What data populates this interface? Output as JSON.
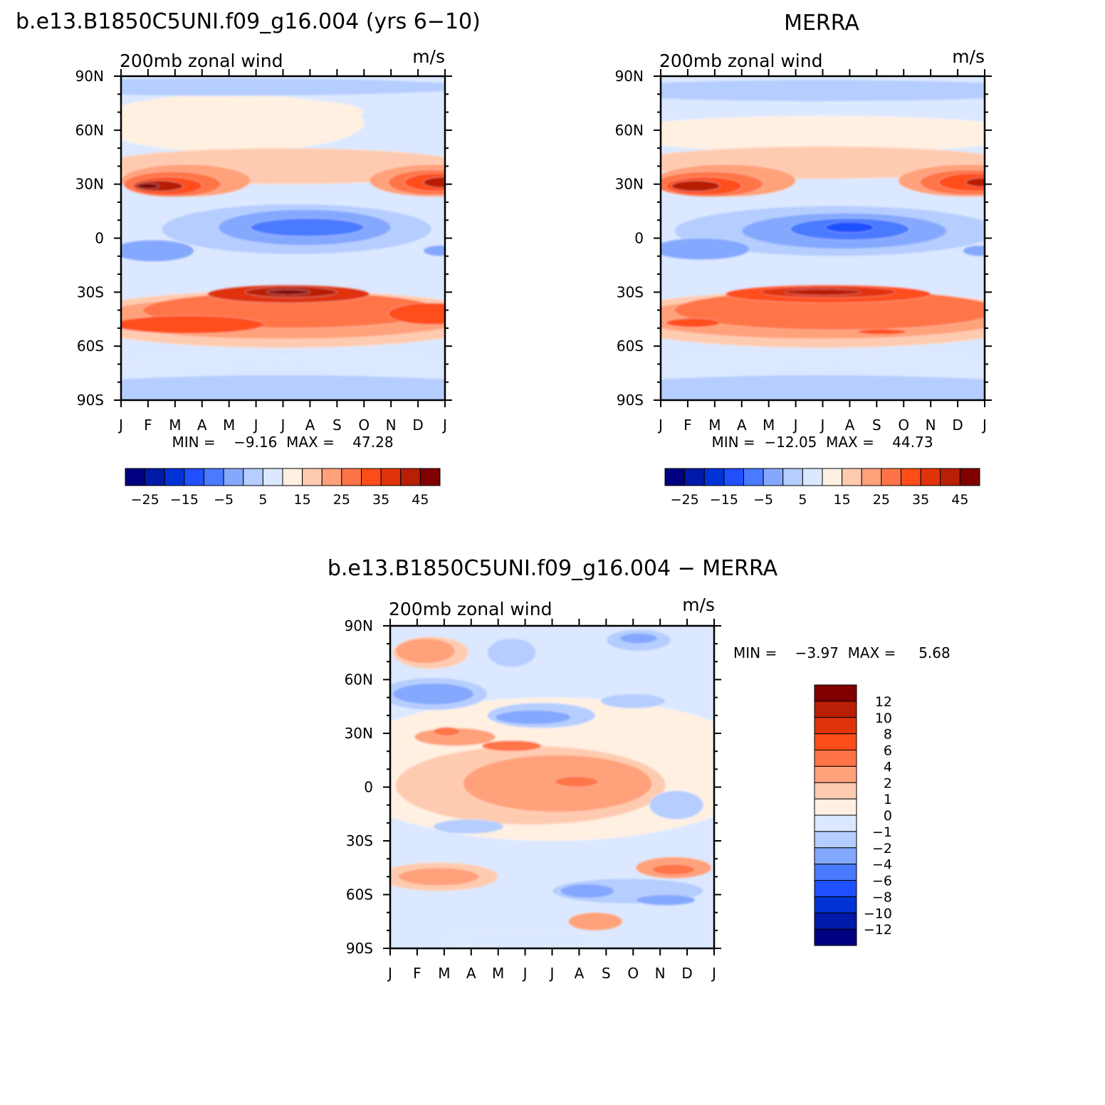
{
  "chart_data": [
    {
      "type": "heatmap",
      "id": "model",
      "title": "b.e13.B1850C5UNI.f09_g16.004 (yrs 6−10)",
      "left_label": "200mb  zonal  wind",
      "right_label": "m/s",
      "y_ticks": [
        "90N",
        "60N",
        "30N",
        "0",
        "30S",
        "60S",
        "90S"
      ],
      "x_ticks": [
        "J",
        "F",
        "M",
        "A",
        "M",
        "J",
        "J",
        "A",
        "S",
        "O",
        "N",
        "D",
        "J"
      ],
      "ylim": [
        -90,
        90
      ],
      "minmax_text": "MIN =    −9.16  MAX =    47.28",
      "colorbar": {
        "orientation": "horizontal",
        "tick_labels": [
          "−25",
          "−15",
          "−5",
          "5",
          "15",
          "25",
          "35",
          "45"
        ],
        "colors": [
          "#000080",
          "#001aa8",
          "#0033d6",
          "#1f4fff",
          "#4a7aff",
          "#85a8ff",
          "#b5cdff",
          "#dbe8ff",
          "#fff0e2",
          "#ffcbb0",
          "#ffa17a",
          "#ff7447",
          "#ff4d1a",
          "#e0330a",
          "#b81f05",
          "#800000"
        ]
      },
      "contours": [
        {
          "color": "#fff0e2",
          "center": [
            4,
            64
          ],
          "spread": [
            5,
            16
          ]
        },
        {
          "color": "#fff0e2",
          "center": [
            6,
            70
          ],
          "spread": [
            3,
            7
          ]
        },
        {
          "color": "#b5cdff",
          "center": [
            4,
            84
          ],
          "spread": [
            9,
            5
          ]
        },
        {
          "color": "#ffcbb0",
          "center": [
            6,
            40
          ],
          "spread": [
            7,
            10
          ]
        },
        {
          "color": "#ffa17a",
          "center": [
            2.4,
            32
          ],
          "spread": [
            2.4,
            9
          ]
        },
        {
          "color": "#ffa17a",
          "center": [
            11.6,
            32
          ],
          "spread": [
            2.4,
            9
          ]
        },
        {
          "color": "#ff7447",
          "center": [
            1.9,
            30
          ],
          "spread": [
            1.8,
            7
          ]
        },
        {
          "color": "#ff7447",
          "center": [
            11.5,
            31
          ],
          "spread": [
            1.6,
            7
          ]
        },
        {
          "color": "#ff4d1a",
          "center": [
            1.7,
            29
          ],
          "spread": [
            1.3,
            5
          ]
        },
        {
          "color": "#ff4d1a",
          "center": [
            11.7,
            31
          ],
          "spread": [
            1.2,
            5
          ]
        },
        {
          "color": "#b81f05",
          "center": [
            1.4,
            29
          ],
          "spread": [
            0.9,
            3
          ]
        },
        {
          "color": "#b81f05",
          "center": [
            11.9,
            31
          ],
          "spread": [
            0.7,
            3
          ]
        },
        {
          "color": "#800000",
          "center": [
            1,
            29
          ],
          "spread": [
            0.4,
            1.5
          ]
        },
        {
          "color": "#b5cdff",
          "center": [
            6.5,
            5
          ],
          "spread": [
            5,
            14
          ]
        },
        {
          "color": "#85a8ff",
          "center": [
            6.8,
            6
          ],
          "spread": [
            3.2,
            10
          ]
        },
        {
          "color": "#4a7aff",
          "center": [
            6.9,
            6
          ],
          "spread": [
            2.1,
            5
          ]
        },
        {
          "color": "#85a8ff",
          "center": [
            1.2,
            -7
          ],
          "spread": [
            1.5,
            6
          ]
        },
        {
          "color": "#85a8ff",
          "center": [
            11.8,
            -7
          ],
          "spread": [
            0.6,
            3
          ]
        },
        {
          "color": "#ffcbb0",
          "center": [
            6,
            -45
          ],
          "spread": [
            8,
            16
          ]
        },
        {
          "color": "#ffa17a",
          "center": [
            6,
            -44
          ],
          "spread": [
            7,
            12
          ]
        },
        {
          "color": "#ff7447",
          "center": [
            6.3,
            -40
          ],
          "spread": [
            5.5,
            10
          ]
        },
        {
          "color": "#ff4d1a",
          "center": [
            2.5,
            -48
          ],
          "spread": [
            2.8,
            5
          ]
        },
        {
          "color": "#ff4d1a",
          "center": [
            11.5,
            -42
          ],
          "spread": [
            1.6,
            6
          ]
        },
        {
          "color": "#e0330a",
          "center": [
            6.2,
            -31
          ],
          "spread": [
            3,
            5
          ]
        },
        {
          "color": "#b81f05",
          "center": [
            6.3,
            -30
          ],
          "spread": [
            1.7,
            3
          ]
        },
        {
          "color": "#800000",
          "center": [
            6.2,
            -30
          ],
          "spread": [
            0.8,
            1.4
          ]
        },
        {
          "color": "#dbe8ff",
          "center": [
            6,
            -72
          ],
          "spread": [
            8,
            5
          ]
        },
        {
          "color": "#b5cdff",
          "center": [
            6,
            -85
          ],
          "spread": [
            9,
            9
          ]
        }
      ]
    },
    {
      "type": "heatmap",
      "id": "obs",
      "title": "MERRA",
      "left_label": "200mb  zonal  wind",
      "right_label": "m/s",
      "y_ticks": [
        "90N",
        "60N",
        "30N",
        "0",
        "30S",
        "60S",
        "90S"
      ],
      "x_ticks": [
        "J",
        "F",
        "M",
        "A",
        "M",
        "J",
        "J",
        "A",
        "S",
        "O",
        "N",
        "D",
        "J"
      ],
      "ylim": [
        -90,
        90
      ],
      "minmax_text": "MIN =  −12.05  MAX =    44.73",
      "colorbar": {
        "orientation": "horizontal",
        "tick_labels": [
          "−25",
          "−15",
          "−5",
          "5",
          "15",
          "25",
          "35",
          "45"
        ],
        "colors": [
          "#000080",
          "#001aa8",
          "#0033d6",
          "#1f4fff",
          "#4a7aff",
          "#85a8ff",
          "#b5cdff",
          "#dbe8ff",
          "#fff0e2",
          "#ffcbb0",
          "#ffa17a",
          "#ff7447",
          "#ff4d1a",
          "#e0330a",
          "#b81f05",
          "#800000"
        ]
      },
      "contours": [
        {
          "color": "#fff0e2",
          "center": [
            6,
            58
          ],
          "spread": [
            8,
            10
          ]
        },
        {
          "color": "#b5cdff",
          "center": [
            6,
            82
          ],
          "spread": [
            9,
            6
          ]
        },
        {
          "color": "#ffcbb0",
          "center": [
            6,
            42
          ],
          "spread": [
            7,
            9
          ]
        },
        {
          "color": "#ffa17a",
          "center": [
            2.4,
            32
          ],
          "spread": [
            2.6,
            9
          ]
        },
        {
          "color": "#ffa17a",
          "center": [
            11.4,
            32
          ],
          "spread": [
            2.6,
            9
          ]
        },
        {
          "color": "#ff7447",
          "center": [
            1.8,
            30
          ],
          "spread": [
            2,
            7
          ]
        },
        {
          "color": "#ff7447",
          "center": [
            11.4,
            31
          ],
          "spread": [
            1.8,
            7
          ]
        },
        {
          "color": "#ff4d1a",
          "center": [
            1.6,
            29
          ],
          "spread": [
            1.4,
            5
          ]
        },
        {
          "color": "#ff4d1a",
          "center": [
            11.6,
            31
          ],
          "spread": [
            1.3,
            5
          ]
        },
        {
          "color": "#b81f05",
          "center": [
            1.3,
            29
          ],
          "spread": [
            0.9,
            3
          ]
        },
        {
          "color": "#b81f05",
          "center": [
            11.9,
            31
          ],
          "spread": [
            0.6,
            2.5
          ]
        },
        {
          "color": "#b5cdff",
          "center": [
            6.5,
            4
          ],
          "spread": [
            6,
            14
          ]
        },
        {
          "color": "#85a8ff",
          "center": [
            6.8,
            4
          ],
          "spread": [
            3.8,
            10
          ]
        },
        {
          "color": "#4a7aff",
          "center": [
            7,
            5
          ],
          "spread": [
            2.2,
            6
          ]
        },
        {
          "color": "#1f4fff",
          "center": [
            7,
            6
          ],
          "spread": [
            0.9,
            3
          ]
        },
        {
          "color": "#85a8ff",
          "center": [
            1.5,
            -6
          ],
          "spread": [
            1.8,
            6
          ]
        },
        {
          "color": "#85a8ff",
          "center": [
            11.8,
            -7
          ],
          "spread": [
            0.6,
            3
          ]
        },
        {
          "color": "#ffcbb0",
          "center": [
            6,
            -45
          ],
          "spread": [
            8,
            16
          ]
        },
        {
          "color": "#ffa17a",
          "center": [
            6,
            -44
          ],
          "spread": [
            7,
            12
          ]
        },
        {
          "color": "#ff7447",
          "center": [
            6.5,
            -40
          ],
          "spread": [
            6,
            11
          ]
        },
        {
          "color": "#ff4d1a",
          "center": [
            6.2,
            -31
          ],
          "spread": [
            3.8,
            5
          ]
        },
        {
          "color": "#ff4d1a",
          "center": [
            1.2,
            -47
          ],
          "spread": [
            1,
            2.5
          ]
        },
        {
          "color": "#ff4d1a",
          "center": [
            8.2,
            -52
          ],
          "spread": [
            0.9,
            1.5
          ]
        },
        {
          "color": "#e0330a",
          "center": [
            6.2,
            -30
          ],
          "spread": [
            2.5,
            3.2
          ]
        },
        {
          "color": "#b81f05",
          "center": [
            6,
            -30
          ],
          "spread": [
            1.4,
            1.8
          ]
        },
        {
          "color": "#dbe8ff",
          "center": [
            6,
            -72
          ],
          "spread": [
            8,
            5
          ]
        },
        {
          "color": "#b5cdff",
          "center": [
            6,
            -85
          ],
          "spread": [
            9,
            9
          ]
        }
      ]
    },
    {
      "type": "heatmap",
      "id": "diff",
      "title": "b.e13.B1850C5UNI.f09_g16.004 − MERRA",
      "left_label": "200mb  zonal  wind",
      "right_label": "m/s",
      "y_ticks": [
        "90N",
        "60N",
        "30N",
        "0",
        "30S",
        "60S",
        "90S"
      ],
      "x_ticks": [
        "J",
        "F",
        "M",
        "A",
        "M",
        "J",
        "J",
        "A",
        "S",
        "O",
        "N",
        "D",
        "J"
      ],
      "ylim": [
        -90,
        90
      ],
      "minmax_text": "MIN =    −3.97  MAX =     5.68",
      "colorbar": {
        "orientation": "vertical",
        "tick_labels": [
          "12",
          "10",
          "8",
          "6",
          "4",
          "2",
          "1",
          "0",
          "−1",
          "−2",
          "−4",
          "−6",
          "−8",
          "−10",
          "−12"
        ],
        "colors": [
          "#800000",
          "#b81f05",
          "#e0330a",
          "#ff4d1a",
          "#ff7447",
          "#ffa17a",
          "#ffcbb0",
          "#fff0e2",
          "#dbe8ff",
          "#b5cdff",
          "#85a8ff",
          "#4a7aff",
          "#1f4fff",
          "#0033d6",
          "#001aa8",
          "#000080"
        ]
      },
      "contours": [
        {
          "color": "#fff0e2",
          "center": [
            6,
            10
          ],
          "spread": [
            8,
            40
          ]
        },
        {
          "color": "#ffcbb0",
          "center": [
            1.5,
            75
          ],
          "spread": [
            1.4,
            9
          ]
        },
        {
          "color": "#ffa17a",
          "center": [
            1.3,
            76
          ],
          "spread": [
            1.1,
            7
          ]
        },
        {
          "color": "#b5cdff",
          "center": [
            1.6,
            52
          ],
          "spread": [
            2,
            9
          ]
        },
        {
          "color": "#85a8ff",
          "center": [
            1.6,
            52
          ],
          "spread": [
            1.5,
            6
          ]
        },
        {
          "color": "#b5cdff",
          "center": [
            4.5,
            75
          ],
          "spread": [
            0.9,
            8
          ]
        },
        {
          "color": "#b5cdff",
          "center": [
            9.2,
            82
          ],
          "spread": [
            1.2,
            6
          ]
        },
        {
          "color": "#85a8ff",
          "center": [
            9.2,
            83
          ],
          "spread": [
            0.7,
            3
          ]
        },
        {
          "color": "#b5cdff",
          "center": [
            5.6,
            40
          ],
          "spread": [
            2,
            7
          ]
        },
        {
          "color": "#85a8ff",
          "center": [
            5.3,
            39
          ],
          "spread": [
            1.4,
            4
          ]
        },
        {
          "color": "#b5cdff",
          "center": [
            9,
            48
          ],
          "spread": [
            1.2,
            4
          ]
        },
        {
          "color": "#ffcbb0",
          "center": [
            5.2,
            1
          ],
          "spread": [
            5,
            22
          ]
        },
        {
          "color": "#ffa17a",
          "center": [
            6.2,
            2
          ],
          "spread": [
            3.5,
            16
          ]
        },
        {
          "color": "#ffa17a",
          "center": [
            2.4,
            28
          ],
          "spread": [
            1.5,
            5
          ]
        },
        {
          "color": "#ff7447",
          "center": [
            2.1,
            31
          ],
          "spread": [
            0.5,
            2.5
          ]
        },
        {
          "color": "#ff7447",
          "center": [
            4.5,
            23
          ],
          "spread": [
            1.1,
            3
          ]
        },
        {
          "color": "#ff7447",
          "center": [
            6.9,
            3
          ],
          "spread": [
            0.8,
            3
          ]
        },
        {
          "color": "#b5cdff",
          "center": [
            10.6,
            -10
          ],
          "spread": [
            1,
            8
          ]
        },
        {
          "color": "#b5cdff",
          "center": [
            2.9,
            -22
          ],
          "spread": [
            1.3,
            4
          ]
        },
        {
          "color": "#ffcbb0",
          "center": [
            1.8,
            -50
          ],
          "spread": [
            2.2,
            8
          ]
        },
        {
          "color": "#ffa17a",
          "center": [
            1.8,
            -50
          ],
          "spread": [
            1.5,
            5
          ]
        },
        {
          "color": "#ffa17a",
          "center": [
            10.5,
            -45
          ],
          "spread": [
            1.4,
            6
          ]
        },
        {
          "color": "#ff7447",
          "center": [
            10.5,
            -46
          ],
          "spread": [
            0.8,
            3
          ]
        },
        {
          "color": "#b5cdff",
          "center": [
            8.8,
            -58
          ],
          "spread": [
            2.8,
            7
          ]
        },
        {
          "color": "#85a8ff",
          "center": [
            7.3,
            -58
          ],
          "spread": [
            1,
            4
          ]
        },
        {
          "color": "#85a8ff",
          "center": [
            10.2,
            -63
          ],
          "spread": [
            1.1,
            3
          ]
        },
        {
          "color": "#ffa17a",
          "center": [
            7.6,
            -75
          ],
          "spread": [
            1,
            5
          ]
        },
        {
          "color": "#dbe8ff",
          "center": [
            5,
            -85
          ],
          "spread": [
            3,
            5
          ]
        }
      ]
    }
  ]
}
